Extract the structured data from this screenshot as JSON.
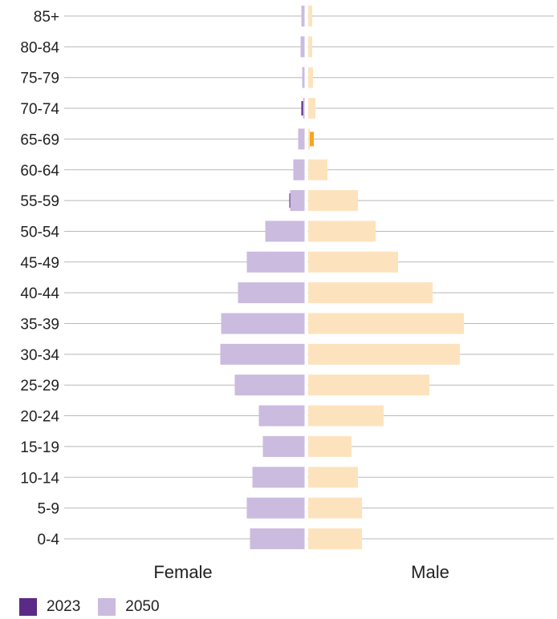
{
  "chart_data": {
    "type": "bar",
    "subtype": "population-pyramid",
    "categories": [
      "85+",
      "80-84",
      "75-79",
      "70-74",
      "65-69",
      "60-64",
      "55-59",
      "50-54",
      "45-49",
      "40-44",
      "35-39",
      "30-34",
      "25-29",
      "20-24",
      "15-19",
      "10-14",
      "5-9",
      "0-4"
    ],
    "side_labels": {
      "left": "Female",
      "right": "Male"
    },
    "series": [
      {
        "name": "2023",
        "side": "female",
        "color": "#5b2a86",
        "values": [
          3,
          3,
          3,
          4,
          5,
          10,
          19,
          23,
          30,
          47,
          66,
          68,
          62,
          52,
          34,
          39,
          43,
          40
        ]
      },
      {
        "name": "2050",
        "side": "female",
        "color": "#cbbbdf",
        "values": [
          4,
          5,
          3,
          2,
          8,
          14,
          18,
          49,
          72,
          83,
          104,
          105,
          87,
          57,
          52,
          65,
          72,
          68
        ]
      },
      {
        "name": "2023",
        "side": "male",
        "color": "#f5a623",
        "values": [
          1,
          1,
          1,
          4,
          7,
          18,
          34,
          51,
          73,
          102,
          137,
          162,
          143,
          80,
          39,
          40,
          45,
          42
        ]
      },
      {
        "name": "2050",
        "side": "male",
        "color": "#fde3bd",
        "values": [
          5,
          5,
          6,
          9,
          2,
          24,
          62,
          84,
          112,
          155,
          194,
          189,
          151,
          94,
          54,
          62,
          67,
          67
        ]
      }
    ],
    "legend": {
      "placement": "bottom-left",
      "items": [
        {
          "label": "2023",
          "color": "#5b2a86"
        },
        {
          "label": "2050",
          "color": "#cbbbdf"
        }
      ]
    },
    "grid": true
  }
}
